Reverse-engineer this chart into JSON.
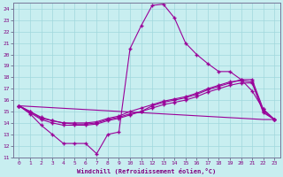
{
  "xlabel": "Windchill (Refroidissement éolien,°C)",
  "bg_color": "#c8eef0",
  "grid_color": "#a0d8dc",
  "line_color": "#990099",
  "xlim": [
    -0.5,
    23.5
  ],
  "ylim": [
    11,
    24.5
  ],
  "xticks": [
    0,
    1,
    2,
    3,
    4,
    5,
    6,
    7,
    8,
    9,
    10,
    11,
    12,
    13,
    14,
    15,
    16,
    17,
    18,
    19,
    20,
    21,
    22,
    23
  ],
  "yticks": [
    11,
    12,
    13,
    14,
    15,
    16,
    17,
    18,
    19,
    20,
    21,
    22,
    23,
    24
  ],
  "line1_x": [
    0,
    1,
    2,
    3,
    4,
    5,
    6,
    7,
    8,
    9,
    10,
    11,
    12,
    13,
    14,
    15,
    16,
    17,
    18,
    19,
    20,
    21,
    22,
    23
  ],
  "line1_y": [
    15.5,
    14.8,
    13.8,
    13.0,
    12.2,
    12.2,
    12.2,
    11.3,
    13.0,
    13.2,
    20.5,
    22.5,
    24.3,
    24.4,
    23.2,
    21.0,
    20.0,
    19.2,
    18.5,
    18.5,
    17.8,
    16.8,
    15.2,
    14.3
  ],
  "line2_x": [
    0,
    1,
    2,
    3,
    4,
    5,
    6,
    7,
    8,
    9,
    10,
    11,
    12,
    13,
    14,
    15,
    16,
    17,
    18,
    19,
    20,
    21,
    22,
    23
  ],
  "line2_y": [
    15.5,
    15.0,
    14.4,
    14.2,
    14.0,
    13.9,
    13.9,
    14.0,
    14.3,
    14.5,
    14.8,
    15.0,
    15.5,
    15.8,
    16.0,
    16.2,
    16.5,
    16.9,
    17.2,
    17.5,
    17.8,
    17.8,
    15.2,
    14.3
  ],
  "line3_x": [
    0,
    1,
    2,
    3,
    4,
    5,
    6,
    7,
    8,
    9,
    10,
    11,
    12,
    13,
    14,
    15,
    16,
    17,
    18,
    19,
    20,
    21,
    22,
    23
  ],
  "line3_y": [
    15.5,
    14.9,
    14.3,
    14.0,
    13.8,
    13.8,
    13.8,
    13.9,
    14.2,
    14.4,
    14.7,
    15.0,
    15.3,
    15.6,
    15.8,
    16.0,
    16.3,
    16.7,
    17.0,
    17.3,
    17.5,
    17.5,
    14.9,
    14.3
  ],
  "line4_x": [
    0,
    1,
    2,
    3,
    4,
    5,
    6,
    7,
    8,
    9,
    10,
    11,
    12,
    13,
    14,
    15,
    16,
    17,
    18,
    19,
    20,
    21,
    22,
    23
  ],
  "line4_y": [
    15.5,
    15.0,
    14.5,
    14.2,
    14.0,
    14.0,
    14.0,
    14.1,
    14.4,
    14.6,
    15.0,
    15.3,
    15.6,
    15.9,
    16.1,
    16.3,
    16.6,
    17.0,
    17.3,
    17.6,
    17.7,
    17.6,
    15.0,
    14.3
  ],
  "line5_x": [
    0,
    22,
    23
  ],
  "line5_y": [
    15.5,
    14.3,
    14.3
  ]
}
